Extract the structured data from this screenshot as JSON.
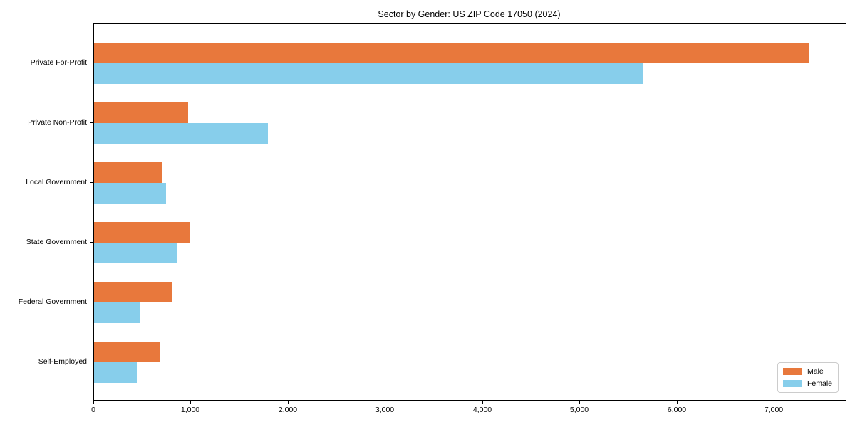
{
  "chart_data": {
    "type": "bar",
    "orientation": "horizontal",
    "title": "Sector by Gender: US ZIP Code 17050 (2024)",
    "categories": [
      "Private For-Profit",
      "Private Non-Profit",
      "Local Government",
      "State Government",
      "Federal Government",
      "Self-Employed"
    ],
    "series": [
      {
        "name": "Male",
        "color": "#e8783c",
        "values": [
          7350,
          970,
          700,
          990,
          800,
          680
        ]
      },
      {
        "name": "Female",
        "color": "#87ceeb",
        "values": [
          5650,
          1790,
          740,
          850,
          470,
          440
        ]
      }
    ],
    "x_ticks": [
      0,
      1000,
      2000,
      3000,
      4000,
      5000,
      6000,
      7000
    ],
    "x_tick_labels": [
      "0",
      "1,000",
      "2,000",
      "3,000",
      "4,000",
      "5,000",
      "6,000",
      "7,000"
    ],
    "xlabel": "",
    "ylabel": "",
    "xlim": [
      0,
      7730
    ],
    "grid": false,
    "legend_position": "lower right",
    "colors": {
      "axis": "#000000",
      "legend_border": "#cccccc",
      "background": "#ffffff"
    }
  }
}
